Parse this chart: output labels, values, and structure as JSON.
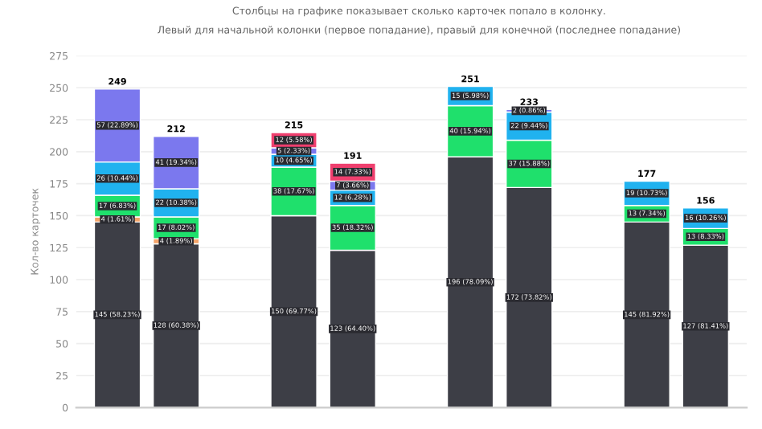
{
  "chart_data": {
    "type": "bar",
    "stacked": true,
    "title": "Столбцы на графике показывает сколько карточек попало в колонку.",
    "subtitle": "Левый для начальной колонки (первое попадание), правый для конечной (последнее попадание)",
    "ylabel": "Кол-во карточек",
    "categories": [
      null,
      null,
      null,
      null,
      null,
      null,
      null,
      null,
      null,
      null,
      null
    ],
    "ylim": [
      0,
      275
    ],
    "yticks": [
      0,
      25,
      50,
      75,
      100,
      125,
      150,
      175,
      200,
      225,
      250,
      275
    ],
    "grid": "y",
    "series": [
      {
        "color": "#3d3e46",
        "values": [
          145,
          128,
          null,
          150,
          123,
          null,
          196,
          172,
          null,
          145,
          127
        ],
        "value_labels": [
          "145 (58.23%)",
          "128 (60.38%)",
          null,
          "150 (69.77%)",
          "123 (64.40%)",
          null,
          "196 (78.09%)",
          "172 (73.82%)",
          null,
          "145 (81.92%)",
          "127 (81.41%)"
        ]
      },
      {
        "color": "#f4a46a",
        "values": [
          4,
          4,
          null,
          null,
          null,
          null,
          null,
          null,
          null,
          null,
          null
        ],
        "value_labels": [
          "4 (1.61%)",
          "4 (1.89%)",
          null,
          null,
          null,
          null,
          null,
          null,
          null,
          null,
          null
        ]
      },
      {
        "color": "#1fe06c",
        "values": [
          17,
          17,
          null,
          38,
          35,
          null,
          40,
          37,
          null,
          13,
          13
        ],
        "value_labels": [
          "17 (6.83%)",
          "17 (8.02%)",
          null,
          "38 (17.67%)",
          "35 (18.32%)",
          null,
          "40 (15.94%)",
          "37 (15.88%)",
          null,
          "13 (7.34%)",
          "13 (8.33%)"
        ]
      },
      {
        "color": "#20b2ef",
        "values": [
          26,
          22,
          null,
          10,
          12,
          null,
          15,
          22,
          null,
          19,
          16
        ],
        "value_labels": [
          "26 (10.44%)",
          "22 (10.38%)",
          null,
          "10 (4.65%)",
          "12 (6.28%)",
          null,
          "15 (5.98%)",
          "22 (9.44%)",
          null,
          "19 (10.73%)",
          "16 (10.26%)"
        ]
      },
      {
        "color": "#7b78ee",
        "values": [
          57,
          41,
          null,
          5,
          7,
          null,
          null,
          2,
          null,
          null,
          null
        ],
        "value_labels": [
          "57 (22.89%)",
          "41 (19.34%)",
          null,
          "5 (2.33%)",
          "7 (3.66%)",
          null,
          null,
          "2 (0.86%)",
          null,
          null,
          null
        ]
      },
      {
        "color": "#ef3f6e",
        "values": [
          null,
          null,
          null,
          12,
          14,
          null,
          null,
          null,
          null,
          null,
          null
        ],
        "value_labels": [
          null,
          null,
          null,
          "12 (5.58%)",
          "14 (7.33%)",
          null,
          null,
          null,
          null,
          null,
          null
        ]
      }
    ],
    "totals": [
      "249",
      "212",
      null,
      "215",
      "191",
      null,
      "251",
      "233",
      null,
      "177",
      "156"
    ]
  }
}
